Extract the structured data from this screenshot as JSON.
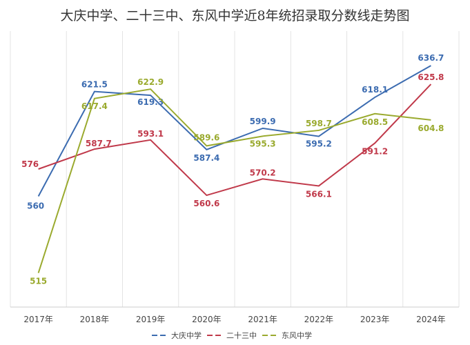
{
  "chart_data": {
    "type": "line",
    "title": "大庆中学、二十三中、东风中学近8年统招录取分数线走势图",
    "categories": [
      "2017年",
      "2018年",
      "2019年",
      "2020年",
      "2021年",
      "2022年",
      "2023年",
      "2024年"
    ],
    "ylim": [
      495,
      657
    ],
    "grid": "vertical",
    "legend": "bottom",
    "series": [
      {
        "name": "大庆中学",
        "color": "#3b6bb0",
        "values": [
          560,
          621.5,
          619.3,
          587.4,
          599.9,
          595.2,
          618.1,
          636.7
        ]
      },
      {
        "name": "二十三中",
        "color": "#c0394a",
        "values": [
          576,
          587.7,
          593.1,
          560.6,
          570.2,
          566.1,
          591.2,
          625.8
        ]
      },
      {
        "name": "东风中学",
        "color": "#9aaa2e",
        "values": [
          515,
          617.4,
          622.9,
          589.6,
          595.3,
          598.7,
          608.5,
          604.8
        ]
      }
    ]
  }
}
